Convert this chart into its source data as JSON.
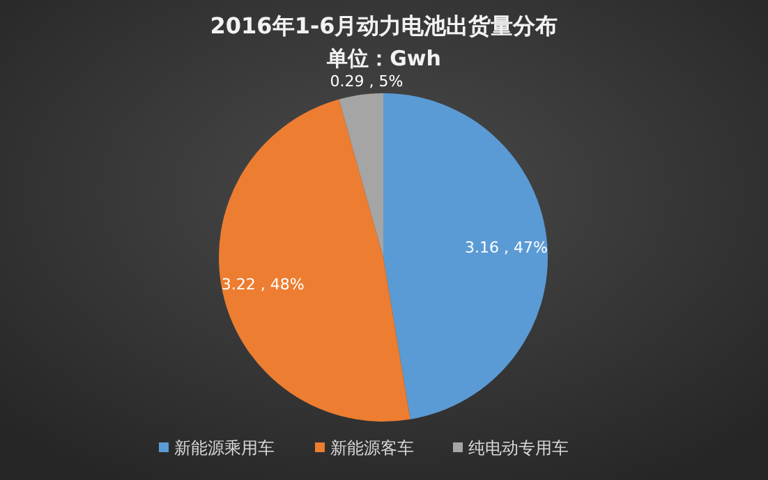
{
  "chart_data": {
    "type": "pie",
    "title": "2016年1-6月动力电池出货量分布",
    "subtitle": "单位：Gwh",
    "categories": [
      "新能源乘用车",
      "新能源客车",
      "纯电动专用车"
    ],
    "values": [
      3.16,
      3.22,
      0.29
    ],
    "colors": [
      "#5b9bd5",
      "#ed7d31",
      "#a5a5a5"
    ],
    "value_labels": [
      "3.16 , 47%",
      "3.22 , 48%",
      "0.29 , 5%"
    ],
    "legend": "bottom"
  }
}
